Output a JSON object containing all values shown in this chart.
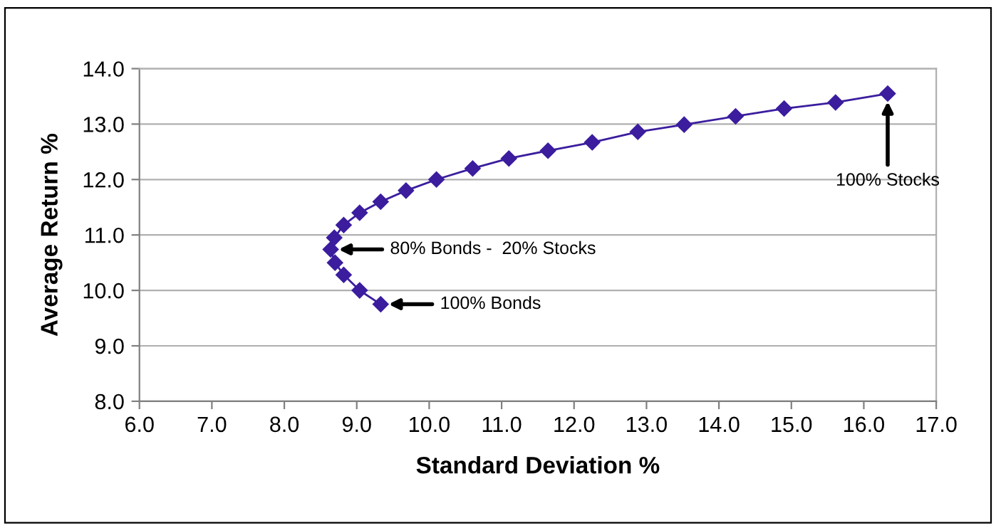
{
  "chart_data": {
    "type": "line",
    "xlabel": "Standard Deviation %",
    "ylabel": "Average Return %",
    "x": [
      9.33,
      9.04,
      8.82,
      8.7,
      8.64,
      8.69,
      8.82,
      9.04,
      9.33,
      9.68,
      10.1,
      10.6,
      11.1,
      11.64,
      12.25,
      12.88,
      13.52,
      14.23,
      14.9,
      15.61,
      16.33
    ],
    "values": [
      9.75,
      10.0,
      10.28,
      10.5,
      10.74,
      10.95,
      11.18,
      11.4,
      11.6,
      11.8,
      12.0,
      12.2,
      12.38,
      12.52,
      12.67,
      12.86,
      12.99,
      13.14,
      13.28,
      13.39,
      13.55
    ],
    "color": "#3b1d9e",
    "marker": "diamond",
    "line_style": "solid",
    "xlim": [
      6,
      17
    ],
    "xticks": [
      {
        "value": 6,
        "label": "6.0"
      },
      {
        "value": 7,
        "label": "7.0"
      },
      {
        "value": 8,
        "label": "8.0"
      },
      {
        "value": 9,
        "label": "9.0"
      },
      {
        "value": 10,
        "label": "10.0"
      },
      {
        "value": 11,
        "label": "11.0"
      },
      {
        "value": 12,
        "label": "12.0"
      },
      {
        "value": 13,
        "label": "13.0"
      },
      {
        "value": 14,
        "label": "14.0"
      },
      {
        "value": 15,
        "label": "15.0"
      },
      {
        "value": 16,
        "label": "16.0"
      },
      {
        "value": 17,
        "label": "17.0"
      }
    ],
    "ylim": [
      8,
      14
    ],
    "yticks": [
      {
        "value": 8,
        "label": "8.0"
      },
      {
        "value": 9,
        "label": "9.0"
      },
      {
        "value": 10,
        "label": "10.0"
      },
      {
        "value": 11,
        "label": "11.0"
      },
      {
        "value": 12,
        "label": "12.0"
      },
      {
        "value": 13,
        "label": "13.0"
      },
      {
        "value": 14,
        "label": "14.0"
      }
    ],
    "grid": "y",
    "legend": false,
    "annotations": [
      {
        "text": "100% Bonds",
        "x": 9.33,
        "y": 9.75
      },
      {
        "text": "80% Bonds -  20% Stocks",
        "x": 8.64,
        "y": 10.74
      },
      {
        "text": "100% Stocks",
        "x": 16.33,
        "y": 13.55
      }
    ]
  }
}
